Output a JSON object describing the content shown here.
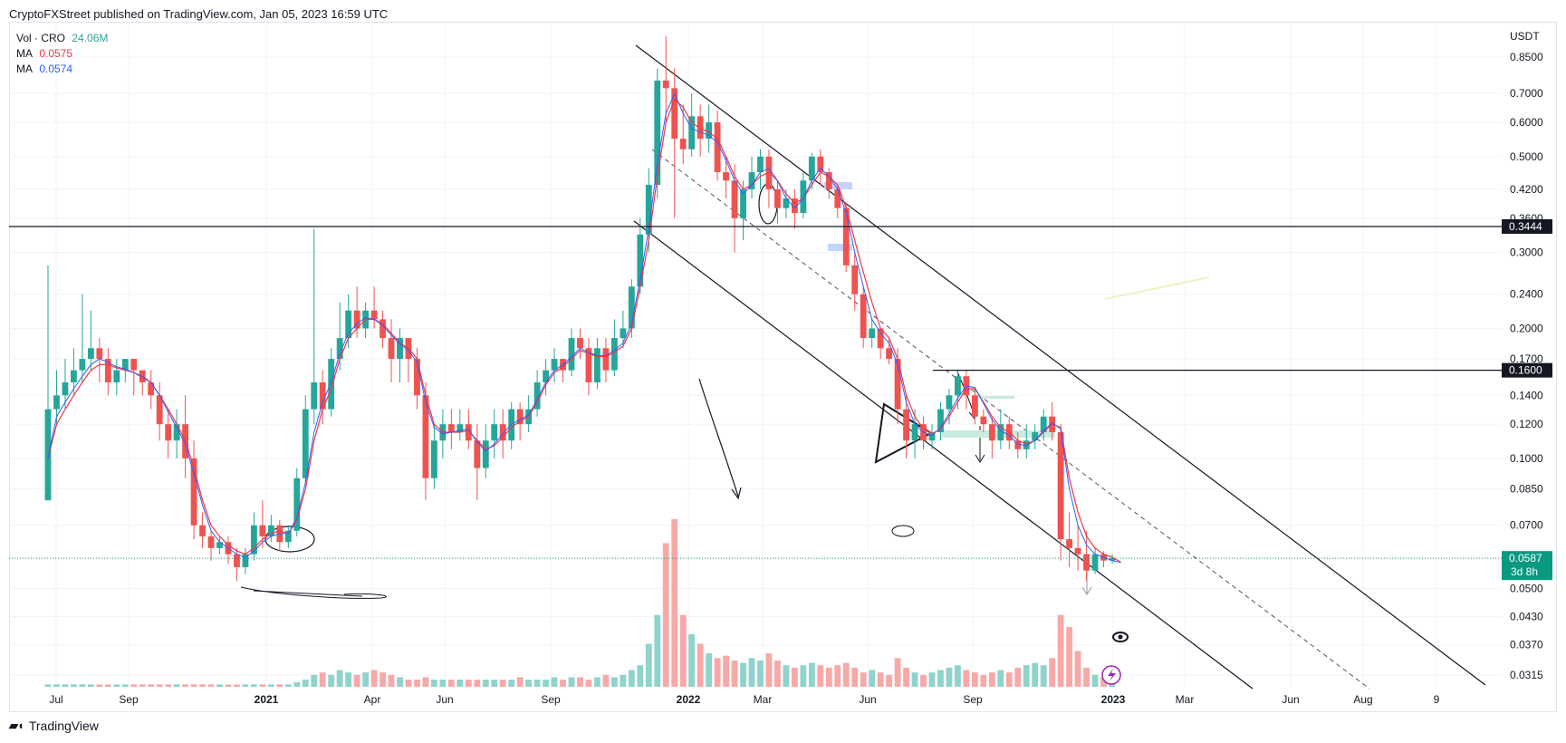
{
  "header": {
    "text": "CryptoFXStreet published on TradingView.com, Jan 05, 2023 16:59 UTC"
  },
  "legend": {
    "vol_label": "Vol · CRO",
    "vol_value": "24.06M",
    "ma1_label": "MA",
    "ma1_value": "0.0575",
    "ma2_label": "MA",
    "ma2_value": "0.0574"
  },
  "footer": {
    "brand": "TradingView"
  },
  "colors": {
    "up": "#26a69a",
    "down": "#ef5350",
    "ma_red": "#f23645",
    "ma_blue": "#2962ff",
    "grid": "#f0f3fa",
    "price_tag": "#089981"
  },
  "chart_data": {
    "type": "candlestick",
    "scale": "log",
    "currency_label": "USDT",
    "y_ticks": [
      0.85,
      0.7,
      0.6,
      0.5,
      0.42,
      0.36,
      0.3,
      0.24,
      0.2,
      0.17,
      0.14,
      0.12,
      0.1,
      0.085,
      0.07,
      0.05,
      0.043,
      0.037,
      0.0315
    ],
    "y_tick_labels": [
      "0.8500",
      "0.7000",
      "0.6000",
      "0.5000",
      "0.4200",
      "0.3600",
      "0.3000",
      "0.2400",
      "0.2000",
      "0.1700",
      "0.1400",
      "0.1200",
      "0.1000",
      "0.0850",
      "0.0700",
      "0.0500",
      "0.0430",
      "0.0370",
      "0.0315"
    ],
    "x_ticks": [
      "Jul",
      "Sep",
      "2021",
      "Apr",
      "Jun",
      "Sep",
      "2022",
      "Mar",
      "Jun",
      "Sep",
      "2023",
      "Mar",
      "Jun",
      "Aug",
      "9"
    ],
    "x_tick_bold": [
      false,
      false,
      true,
      false,
      false,
      false,
      true,
      false,
      false,
      false,
      true,
      false,
      false,
      false,
      false
    ],
    "last_price": "0.0587",
    "countdown": "3d 8h",
    "horizontal_levels": [
      {
        "value": 0.3444,
        "label": "0.3444"
      },
      {
        "value": 0.16,
        "label": "0.1600"
      }
    ],
    "candles": [
      [
        0.08,
        0.13,
        0.28,
        0.08
      ],
      [
        0.13,
        0.14,
        0.16,
        0.12
      ],
      [
        0.14,
        0.15,
        0.17,
        0.13
      ],
      [
        0.15,
        0.16,
        0.18,
        0.14
      ],
      [
        0.16,
        0.17,
        0.24,
        0.15
      ],
      [
        0.17,
        0.18,
        0.22,
        0.16
      ],
      [
        0.18,
        0.17,
        0.19,
        0.15
      ],
      [
        0.17,
        0.15,
        0.18,
        0.14
      ],
      [
        0.15,
        0.16,
        0.17,
        0.14
      ],
      [
        0.16,
        0.17,
        0.17,
        0.15
      ],
      [
        0.17,
        0.16,
        0.17,
        0.14
      ],
      [
        0.16,
        0.15,
        0.16,
        0.14
      ],
      [
        0.15,
        0.14,
        0.16,
        0.13
      ],
      [
        0.14,
        0.12,
        0.15,
        0.11
      ],
      [
        0.12,
        0.11,
        0.13,
        0.1
      ],
      [
        0.11,
        0.12,
        0.13,
        0.1
      ],
      [
        0.12,
        0.1,
        0.14,
        0.09
      ],
      [
        0.1,
        0.07,
        0.11,
        0.065
      ],
      [
        0.07,
        0.066,
        0.075,
        0.062
      ],
      [
        0.066,
        0.062,
        0.068,
        0.058
      ],
      [
        0.062,
        0.064,
        0.066,
        0.06
      ],
      [
        0.064,
        0.06,
        0.066,
        0.057
      ],
      [
        0.06,
        0.056,
        0.062,
        0.052
      ],
      [
        0.056,
        0.06,
        0.062,
        0.054
      ],
      [
        0.06,
        0.07,
        0.075,
        0.058
      ],
      [
        0.07,
        0.066,
        0.08,
        0.062
      ],
      [
        0.066,
        0.07,
        0.074,
        0.064
      ],
      [
        0.07,
        0.064,
        0.072,
        0.061
      ],
      [
        0.064,
        0.068,
        0.07,
        0.062
      ],
      [
        0.068,
        0.09,
        0.095,
        0.066
      ],
      [
        0.09,
        0.13,
        0.14,
        0.088
      ],
      [
        0.13,
        0.15,
        0.34,
        0.12
      ],
      [
        0.15,
        0.13,
        0.16,
        0.12
      ],
      [
        0.13,
        0.17,
        0.18,
        0.125
      ],
      [
        0.17,
        0.19,
        0.23,
        0.16
      ],
      [
        0.19,
        0.22,
        0.24,
        0.18
      ],
      [
        0.22,
        0.2,
        0.25,
        0.19
      ],
      [
        0.2,
        0.22,
        0.23,
        0.19
      ],
      [
        0.22,
        0.21,
        0.25,
        0.2
      ],
      [
        0.21,
        0.19,
        0.22,
        0.18
      ],
      [
        0.19,
        0.17,
        0.21,
        0.15
      ],
      [
        0.17,
        0.19,
        0.2,
        0.15
      ],
      [
        0.19,
        0.17,
        0.19,
        0.15
      ],
      [
        0.17,
        0.14,
        0.18,
        0.13
      ],
      [
        0.14,
        0.09,
        0.15,
        0.08
      ],
      [
        0.09,
        0.11,
        0.12,
        0.085
      ],
      [
        0.11,
        0.12,
        0.13,
        0.1
      ],
      [
        0.12,
        0.115,
        0.13,
        0.105
      ],
      [
        0.115,
        0.12,
        0.13,
        0.11
      ],
      [
        0.12,
        0.11,
        0.13,
        0.105
      ],
      [
        0.11,
        0.095,
        0.12,
        0.08
      ],
      [
        0.095,
        0.11,
        0.12,
        0.09
      ],
      [
        0.11,
        0.12,
        0.13,
        0.1
      ],
      [
        0.12,
        0.11,
        0.13,
        0.1
      ],
      [
        0.11,
        0.13,
        0.135,
        0.105
      ],
      [
        0.13,
        0.12,
        0.135,
        0.11
      ],
      [
        0.12,
        0.13,
        0.14,
        0.115
      ],
      [
        0.13,
        0.15,
        0.16,
        0.125
      ],
      [
        0.15,
        0.16,
        0.17,
        0.14
      ],
      [
        0.16,
        0.17,
        0.18,
        0.15
      ],
      [
        0.17,
        0.16,
        0.17,
        0.15
      ],
      [
        0.16,
        0.19,
        0.2,
        0.155
      ],
      [
        0.19,
        0.18,
        0.2,
        0.17
      ],
      [
        0.18,
        0.15,
        0.19,
        0.14
      ],
      [
        0.15,
        0.18,
        0.19,
        0.145
      ],
      [
        0.18,
        0.16,
        0.19,
        0.15
      ],
      [
        0.16,
        0.19,
        0.21,
        0.155
      ],
      [
        0.19,
        0.2,
        0.22,
        0.18
      ],
      [
        0.2,
        0.25,
        0.26,
        0.19
      ],
      [
        0.25,
        0.33,
        0.36,
        0.24
      ],
      [
        0.33,
        0.43,
        0.47,
        0.3
      ],
      [
        0.43,
        0.75,
        0.8,
        0.4
      ],
      [
        0.75,
        0.72,
        0.95,
        0.6
      ],
      [
        0.72,
        0.55,
        0.8,
        0.36
      ],
      [
        0.55,
        0.52,
        0.66,
        0.48
      ],
      [
        0.52,
        0.62,
        0.7,
        0.5
      ],
      [
        0.62,
        0.55,
        0.66,
        0.5
      ],
      [
        0.55,
        0.6,
        0.66,
        0.51
      ],
      [
        0.6,
        0.46,
        0.64,
        0.44
      ],
      [
        0.46,
        0.44,
        0.5,
        0.4
      ],
      [
        0.44,
        0.36,
        0.48,
        0.3
      ],
      [
        0.36,
        0.42,
        0.44,
        0.32
      ],
      [
        0.42,
        0.46,
        0.5,
        0.4
      ],
      [
        0.46,
        0.5,
        0.52,
        0.42
      ],
      [
        0.5,
        0.42,
        0.52,
        0.38
      ],
      [
        0.42,
        0.38,
        0.44,
        0.35
      ],
      [
        0.38,
        0.4,
        0.42,
        0.36
      ],
      [
        0.4,
        0.37,
        0.42,
        0.34
      ],
      [
        0.37,
        0.44,
        0.46,
        0.36
      ],
      [
        0.44,
        0.5,
        0.51,
        0.42
      ],
      [
        0.5,
        0.46,
        0.52,
        0.43
      ],
      [
        0.46,
        0.42,
        0.47,
        0.4
      ],
      [
        0.42,
        0.38,
        0.43,
        0.36
      ],
      [
        0.38,
        0.28,
        0.39,
        0.27
      ],
      [
        0.28,
        0.24,
        0.3,
        0.22
      ],
      [
        0.24,
        0.19,
        0.25,
        0.18
      ],
      [
        0.19,
        0.2,
        0.21,
        0.18
      ],
      [
        0.2,
        0.18,
        0.2,
        0.17
      ],
      [
        0.18,
        0.17,
        0.19,
        0.165
      ],
      [
        0.17,
        0.13,
        0.18,
        0.12
      ],
      [
        0.13,
        0.11,
        0.14,
        0.1
      ],
      [
        0.11,
        0.12,
        0.13,
        0.1
      ],
      [
        0.12,
        0.11,
        0.125,
        0.105
      ],
      [
        0.11,
        0.115,
        0.12,
        0.105
      ],
      [
        0.115,
        0.13,
        0.135,
        0.11
      ],
      [
        0.13,
        0.14,
        0.145,
        0.12
      ],
      [
        0.14,
        0.155,
        0.16,
        0.13
      ],
      [
        0.155,
        0.14,
        0.16,
        0.13
      ],
      [
        0.14,
        0.125,
        0.145,
        0.12
      ],
      [
        0.125,
        0.12,
        0.13,
        0.115
      ],
      [
        0.12,
        0.11,
        0.125,
        0.1
      ],
      [
        0.11,
        0.12,
        0.13,
        0.105
      ],
      [
        0.12,
        0.11,
        0.125,
        0.105
      ],
      [
        0.11,
        0.105,
        0.115,
        0.1
      ],
      [
        0.105,
        0.11,
        0.12,
        0.1
      ],
      [
        0.11,
        0.115,
        0.12,
        0.105
      ],
      [
        0.115,
        0.125,
        0.13,
        0.11
      ],
      [
        0.125,
        0.115,
        0.135,
        0.11
      ],
      [
        0.115,
        0.065,
        0.12,
        0.058
      ],
      [
        0.065,
        0.062,
        0.075,
        0.056
      ],
      [
        0.062,
        0.06,
        0.07,
        0.055
      ],
      [
        0.06,
        0.055,
        0.068,
        0.052
      ],
      [
        0.055,
        0.06,
        0.062,
        0.054
      ],
      [
        0.06,
        0.058,
        0.061,
        0.056
      ],
      [
        0.058,
        0.0587,
        0.06,
        0.057
      ]
    ],
    "volumes": [
      1,
      1,
      1,
      1,
      1,
      1,
      1,
      1,
      1,
      1,
      1,
      1,
      1,
      1,
      1,
      1,
      1,
      1,
      1,
      1,
      1,
      1,
      1,
      1,
      1,
      1,
      1,
      1,
      1,
      2,
      3,
      5,
      6,
      5,
      7,
      6,
      5,
      6,
      7,
      6,
      5,
      4,
      3,
      3,
      4,
      3,
      3,
      3,
      3,
      3,
      3,
      3,
      3,
      3,
      3,
      4,
      3,
      3,
      3,
      4,
      3,
      4,
      4,
      3,
      4,
      5,
      4,
      5,
      7,
      9,
      18,
      30,
      60,
      70,
      30,
      22,
      18,
      14,
      12,
      13,
      11,
      10,
      12,
      11,
      14,
      11,
      9,
      8,
      9,
      10,
      9,
      8,
      9,
      10,
      8,
      6,
      7,
      6,
      5,
      12,
      8,
      6,
      5,
      6,
      7,
      8,
      9,
      7,
      6,
      5,
      6,
      7,
      6,
      8,
      9,
      10,
      9,
      12,
      30,
      25,
      15,
      8,
      5,
      4,
      5
    ],
    "ma_red": [
      0.1,
      0.12,
      0.13,
      0.14,
      0.15,
      0.16,
      0.165,
      0.165,
      0.162,
      0.16,
      0.158,
      0.154,
      0.15,
      0.14,
      0.13,
      0.12,
      0.11,
      0.095,
      0.08,
      0.07,
      0.066,
      0.063,
      0.061,
      0.06,
      0.062,
      0.065,
      0.067,
      0.068,
      0.067,
      0.072,
      0.085,
      0.11,
      0.13,
      0.145,
      0.17,
      0.19,
      0.2,
      0.21,
      0.21,
      0.205,
      0.195,
      0.185,
      0.18,
      0.17,
      0.14,
      0.12,
      0.115,
      0.115,
      0.115,
      0.116,
      0.11,
      0.105,
      0.107,
      0.112,
      0.118,
      0.122,
      0.125,
      0.135,
      0.148,
      0.158,
      0.163,
      0.17,
      0.178,
      0.175,
      0.172,
      0.172,
      0.176,
      0.182,
      0.2,
      0.25,
      0.32,
      0.45,
      0.6,
      0.68,
      0.65,
      0.6,
      0.58,
      0.57,
      0.55,
      0.5,
      0.45,
      0.42,
      0.43,
      0.45,
      0.46,
      0.44,
      0.41,
      0.39,
      0.4,
      0.43,
      0.46,
      0.45,
      0.43,
      0.38,
      0.32,
      0.27,
      0.23,
      0.2,
      0.19,
      0.17,
      0.14,
      0.125,
      0.117,
      0.114,
      0.117,
      0.125,
      0.135,
      0.145,
      0.145,
      0.135,
      0.125,
      0.118,
      0.115,
      0.11,
      0.108,
      0.11,
      0.115,
      0.12,
      0.118,
      0.09,
      0.075,
      0.066,
      0.062,
      0.06,
      0.059,
      0.0575
    ],
    "ma_blue": [
      0.1,
      0.125,
      0.135,
      0.145,
      0.155,
      0.165,
      0.17,
      0.167,
      0.163,
      0.161,
      0.158,
      0.155,
      0.15,
      0.14,
      0.128,
      0.118,
      0.108,
      0.092,
      0.078,
      0.068,
      0.064,
      0.062,
      0.06,
      0.059,
      0.061,
      0.064,
      0.066,
      0.067,
      0.067,
      0.073,
      0.088,
      0.115,
      0.135,
      0.15,
      0.175,
      0.195,
      0.205,
      0.212,
      0.21,
      0.203,
      0.193,
      0.184,
      0.178,
      0.167,
      0.135,
      0.118,
      0.114,
      0.115,
      0.116,
      0.117,
      0.109,
      0.104,
      0.108,
      0.114,
      0.12,
      0.123,
      0.126,
      0.137,
      0.15,
      0.16,
      0.165,
      0.172,
      0.18,
      0.176,
      0.173,
      0.173,
      0.178,
      0.185,
      0.205,
      0.26,
      0.34,
      0.48,
      0.63,
      0.7,
      0.63,
      0.58,
      0.57,
      0.56,
      0.54,
      0.49,
      0.44,
      0.41,
      0.43,
      0.46,
      0.47,
      0.44,
      0.4,
      0.38,
      0.4,
      0.44,
      0.47,
      0.45,
      0.42,
      0.37,
      0.3,
      0.25,
      0.21,
      0.195,
      0.185,
      0.165,
      0.135,
      0.12,
      0.115,
      0.113,
      0.118,
      0.127,
      0.138,
      0.147,
      0.146,
      0.134,
      0.123,
      0.116,
      0.113,
      0.108,
      0.107,
      0.11,
      0.116,
      0.121,
      0.117,
      0.085,
      0.07,
      0.063,
      0.06,
      0.059,
      0.058,
      0.0574
    ]
  }
}
